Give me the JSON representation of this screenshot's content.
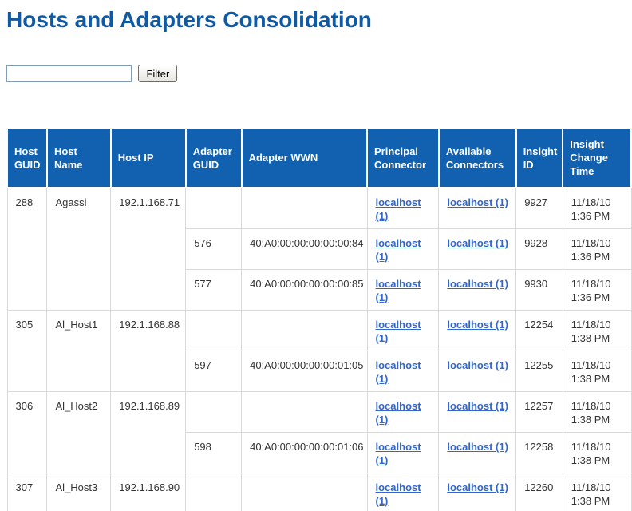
{
  "page": {
    "title": "Hosts and Adapters Consolidation"
  },
  "filter": {
    "input_value": "",
    "button_label": "Filter"
  },
  "colors": {
    "title": "#0D5AA7",
    "header_bg": "#1161B0",
    "header_text": "#FFFFFF",
    "link": "#3366CC",
    "cell_border": "#D9D9D9",
    "cell_text": "#333333"
  },
  "table": {
    "columns": [
      "Host GUID",
      "Host Name",
      "Host IP",
      "Adapter GUID",
      "Adapter WWN",
      "Principal Connector",
      "Available Connectors",
      "Insight ID",
      "Insight Change Time"
    ],
    "groups": [
      {
        "host_guid": "288",
        "host_name": "Agassi",
        "host_ip": "192.1.168.71",
        "rows": [
          {
            "adapter_guid": "",
            "adapter_wwn": "",
            "principal_connector": "localhost (1)",
            "available_connectors": "localhost (1)",
            "insight_id": "9927",
            "insight_change_time": "11/18/10 1:36 PM"
          },
          {
            "adapter_guid": "576",
            "adapter_wwn": "40:A0:00:00:00:00:00:84",
            "principal_connector": "localhost (1)",
            "available_connectors": "localhost (1)",
            "insight_id": "9928",
            "insight_change_time": "11/18/10 1:36 PM"
          },
          {
            "adapter_guid": "577",
            "adapter_wwn": "40:A0:00:00:00:00:00:85",
            "principal_connector": "localhost (1)",
            "available_connectors": "localhost (1)",
            "insight_id": "9930",
            "insight_change_time": "11/18/10 1:36 PM"
          }
        ]
      },
      {
        "host_guid": "305",
        "host_name": "Al_Host1",
        "host_ip": "192.1.168.88",
        "rows": [
          {
            "adapter_guid": "",
            "adapter_wwn": "",
            "principal_connector": "localhost (1)",
            "available_connectors": "localhost (1)",
            "insight_id": "12254",
            "insight_change_time": "11/18/10 1:38 PM"
          },
          {
            "adapter_guid": "597",
            "adapter_wwn": "40:A0:00:00:00:00:01:05",
            "principal_connector": "localhost (1)",
            "available_connectors": "localhost (1)",
            "insight_id": "12255",
            "insight_change_time": "11/18/10 1:38 PM"
          }
        ]
      },
      {
        "host_guid": "306",
        "host_name": "Al_Host2",
        "host_ip": "192.1.168.89",
        "rows": [
          {
            "adapter_guid": "",
            "adapter_wwn": "",
            "principal_connector": "localhost (1)",
            "available_connectors": "localhost (1)",
            "insight_id": "12257",
            "insight_change_time": "11/18/10 1:38 PM"
          },
          {
            "adapter_guid": "598",
            "adapter_wwn": "40:A0:00:00:00:00:01:06",
            "principal_connector": "localhost (1)",
            "available_connectors": "localhost (1)",
            "insight_id": "12258",
            "insight_change_time": "11/18/10 1:38 PM"
          }
        ]
      },
      {
        "host_guid": "307",
        "host_name": "Al_Host3",
        "host_ip": "192.1.168.90",
        "rows": [
          {
            "adapter_guid": "",
            "adapter_wwn": "",
            "principal_connector": "localhost (1)",
            "available_connectors": "localhost (1)",
            "insight_id": "12260",
            "insight_change_time": "11/18/10 1:38 PM"
          }
        ]
      }
    ]
  }
}
